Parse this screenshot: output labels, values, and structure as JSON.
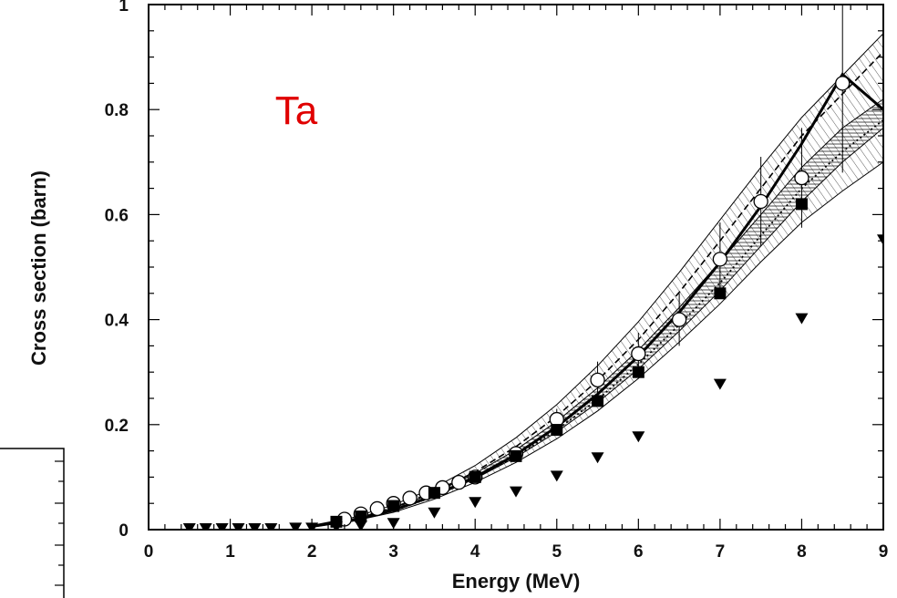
{
  "chart_data": {
    "type": "scatter",
    "xlabel": "Energy (MeV)",
    "ylabel": "Cross section (barn)",
    "xlim": [
      0,
      9
    ],
    "ylim": [
      0,
      1.0
    ],
    "x_ticks": [
      "0",
      "1",
      "2",
      "3",
      "4",
      "5",
      "6",
      "7",
      "8",
      "9"
    ],
    "y_ticks": [
      "0",
      "0.2",
      "0.4",
      "0.6",
      "0.8",
      "1"
    ],
    "annotations": [
      {
        "text": "Ta",
        "x": 1.55,
        "y": 0.8
      }
    ],
    "series": [
      {
        "marker": "open-circle",
        "points": [
          {
            "x": 2.4,
            "y": 0.02,
            "err": 0.005
          },
          {
            "x": 2.6,
            "y": 0.03,
            "err": 0.005
          },
          {
            "x": 2.8,
            "y": 0.04,
            "err": 0.007
          },
          {
            "x": 3.0,
            "y": 0.05,
            "err": 0.008
          },
          {
            "x": 3.2,
            "y": 0.06,
            "err": 0.008
          },
          {
            "x": 3.4,
            "y": 0.07,
            "err": 0.01
          },
          {
            "x": 3.6,
            "y": 0.08,
            "err": 0.01
          },
          {
            "x": 3.8,
            "y": 0.09,
            "err": 0.01
          },
          {
            "x": 4.0,
            "y": 0.1,
            "err": 0.01
          },
          {
            "x": 4.5,
            "y": 0.145,
            "err": 0.015
          },
          {
            "x": 5.0,
            "y": 0.21,
            "err": 0.02
          },
          {
            "x": 5.5,
            "y": 0.285,
            "err": 0.035
          },
          {
            "x": 6.0,
            "y": 0.335,
            "err": 0.04
          },
          {
            "x": 6.5,
            "y": 0.4,
            "err": 0.05
          },
          {
            "x": 7.0,
            "y": 0.515,
            "err": 0.07
          },
          {
            "x": 7.5,
            "y": 0.625,
            "err": 0.085
          },
          {
            "x": 8.0,
            "y": 0.67,
            "err": 0.095
          },
          {
            "x": 8.5,
            "y": 0.85,
            "err": 0.17
          }
        ]
      },
      {
        "marker": "filled-square",
        "points": [
          {
            "x": 2.3,
            "y": 0.015
          },
          {
            "x": 2.6,
            "y": 0.025
          },
          {
            "x": 3.0,
            "y": 0.045
          },
          {
            "x": 3.5,
            "y": 0.07
          },
          {
            "x": 4.0,
            "y": 0.1
          },
          {
            "x": 4.5,
            "y": 0.14
          },
          {
            "x": 5.0,
            "y": 0.19
          },
          {
            "x": 5.5,
            "y": 0.245
          },
          {
            "x": 6.0,
            "y": 0.3
          },
          {
            "x": 7.0,
            "y": 0.45
          },
          {
            "x": 8.0,
            "y": 0.62
          }
        ]
      },
      {
        "marker": "filled-triangle-down",
        "points": [
          {
            "x": 0.5,
            "y": 0.0
          },
          {
            "x": 0.7,
            "y": 0.0
          },
          {
            "x": 0.9,
            "y": 0.0
          },
          {
            "x": 1.1,
            "y": 0.0
          },
          {
            "x": 1.3,
            "y": 0.0
          },
          {
            "x": 1.5,
            "y": 0.0
          },
          {
            "x": 1.8,
            "y": 0.001
          },
          {
            "x": 2.0,
            "y": 0.001
          },
          {
            "x": 2.3,
            "y": 0.003
          },
          {
            "x": 2.6,
            "y": 0.005
          },
          {
            "x": 3.0,
            "y": 0.01
          },
          {
            "x": 3.5,
            "y": 0.03
          },
          {
            "x": 4.0,
            "y": 0.05
          },
          {
            "x": 4.5,
            "y": 0.07
          },
          {
            "x": 5.0,
            "y": 0.1
          },
          {
            "x": 5.5,
            "y": 0.135
          },
          {
            "x": 6.0,
            "y": 0.175
          },
          {
            "x": 7.0,
            "y": 0.275
          },
          {
            "x": 8.0,
            "y": 0.4
          },
          {
            "x": 9.0,
            "y": 0.55
          }
        ]
      },
      {
        "style": "solid-thick",
        "points": [
          [
            2.0,
            0.006
          ],
          [
            2.5,
            0.018
          ],
          [
            3.0,
            0.037
          ],
          [
            3.5,
            0.065
          ],
          [
            4.0,
            0.1
          ],
          [
            4.5,
            0.143
          ],
          [
            5.0,
            0.196
          ],
          [
            5.5,
            0.258
          ],
          [
            6.0,
            0.33
          ],
          [
            6.5,
            0.414
          ],
          [
            7.0,
            0.509
          ],
          [
            7.5,
            0.616
          ],
          [
            8.0,
            0.735
          ],
          [
            8.5,
            0.867
          ],
          [
            9.0,
            0.8
          ]
        ]
      },
      {
        "style": "dashed",
        "points": [
          [
            2.0,
            0.007
          ],
          [
            2.5,
            0.02
          ],
          [
            3.0,
            0.042
          ],
          [
            3.5,
            0.072
          ],
          [
            4.0,
            0.11
          ],
          [
            4.5,
            0.158
          ],
          [
            5.0,
            0.216
          ],
          [
            5.5,
            0.284
          ],
          [
            6.0,
            0.362
          ],
          [
            6.5,
            0.452
          ],
          [
            7.0,
            0.55
          ],
          [
            7.5,
            0.65
          ],
          [
            8.0,
            0.75
          ],
          [
            8.5,
            0.83
          ],
          [
            9.0,
            0.91
          ]
        ]
      },
      {
        "style": "dotted",
        "points": [
          [
            2.0,
            0.006
          ],
          [
            2.5,
            0.017
          ],
          [
            3.0,
            0.036
          ],
          [
            3.5,
            0.063
          ],
          [
            4.0,
            0.098
          ],
          [
            4.5,
            0.14
          ],
          [
            5.0,
            0.19
          ],
          [
            5.5,
            0.248
          ],
          [
            6.0,
            0.315
          ],
          [
            6.5,
            0.39
          ],
          [
            7.0,
            0.47
          ],
          [
            7.5,
            0.56
          ],
          [
            8.0,
            0.65
          ],
          [
            8.5,
            0.72
          ],
          [
            9.0,
            0.78
          ]
        ]
      }
    ],
    "bands": [
      {
        "lower": [
          [
            2.0,
            0.005
          ],
          [
            2.5,
            0.016
          ],
          [
            3.0,
            0.033
          ],
          [
            3.5,
            0.058
          ],
          [
            4.0,
            0.09
          ],
          [
            4.5,
            0.128
          ],
          [
            5.0,
            0.173
          ],
          [
            5.5,
            0.226
          ],
          [
            6.0,
            0.288
          ],
          [
            6.5,
            0.357
          ],
          [
            7.0,
            0.43
          ],
          [
            7.5,
            0.51
          ],
          [
            8.0,
            0.585
          ],
          [
            8.5,
            0.645
          ],
          [
            9.0,
            0.7
          ]
        ],
        "upper": [
          [
            2.0,
            0.008
          ],
          [
            2.5,
            0.023
          ],
          [
            3.0,
            0.047
          ],
          [
            3.5,
            0.08
          ],
          [
            4.0,
            0.122
          ],
          [
            4.5,
            0.175
          ],
          [
            5.0,
            0.238
          ],
          [
            5.5,
            0.312
          ],
          [
            6.0,
            0.396
          ],
          [
            6.5,
            0.49
          ],
          [
            7.0,
            0.59
          ],
          [
            7.5,
            0.69
          ],
          [
            8.0,
            0.785
          ],
          [
            8.5,
            0.865
          ],
          [
            9.0,
            0.945
          ]
        ]
      },
      {
        "lower": [
          [
            2.0,
            0.006
          ],
          [
            2.5,
            0.017
          ],
          [
            3.0,
            0.036
          ],
          [
            3.5,
            0.063
          ],
          [
            4.0,
            0.097
          ],
          [
            4.5,
            0.138
          ],
          [
            5.0,
            0.186
          ],
          [
            5.5,
            0.242
          ],
          [
            6.0,
            0.306
          ],
          [
            6.5,
            0.378
          ],
          [
            7.0,
            0.455
          ],
          [
            7.5,
            0.54
          ],
          [
            8.0,
            0.625
          ],
          [
            8.5,
            0.7
          ],
          [
            9.0,
            0.765
          ]
        ],
        "upper": [
          [
            2.0,
            0.007
          ],
          [
            2.5,
            0.02
          ],
          [
            3.0,
            0.041
          ],
          [
            3.5,
            0.07
          ],
          [
            4.0,
            0.107
          ],
          [
            4.5,
            0.152
          ],
          [
            5.0,
            0.206
          ],
          [
            5.5,
            0.27
          ],
          [
            6.0,
            0.342
          ],
          [
            6.5,
            0.423
          ],
          [
            7.0,
            0.51
          ],
          [
            7.5,
            0.6
          ],
          [
            8.0,
            0.69
          ],
          [
            8.5,
            0.765
          ],
          [
            9.0,
            0.82
          ]
        ]
      }
    ]
  }
}
